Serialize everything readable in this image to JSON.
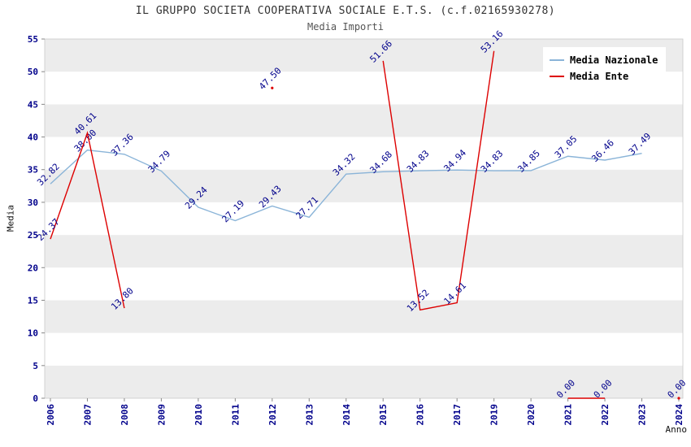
{
  "chart_data": {
    "type": "line",
    "title": "IL GRUPPO SOCIETA COOPERATIVA SOCIALE E.T.S. (c.f.02165930278)",
    "subtitle": "Media Importi",
    "xlabel": "Anno",
    "ylabel": "Media",
    "ylim": [
      0,
      55
    ],
    "ytick_step": 5,
    "grid": "horizontal-alternating-bands",
    "legend_position": "top-right",
    "axis_tick_color": "#00008B",
    "value_label_color": "#00008B",
    "band_color": "#ECECEC",
    "categories": [
      "2006",
      "2007",
      "2008",
      "2009",
      "2010",
      "2011",
      "2012",
      "2013",
      "2014",
      "2015",
      "2016",
      "2017",
      "2019",
      "2020",
      "2021",
      "2022",
      "2023",
      "2024"
    ],
    "series": [
      {
        "name": "Media Nazionale",
        "color": "#8AB4D8",
        "values": [
          32.82,
          38.0,
          37.36,
          34.79,
          29.24,
          27.19,
          29.43,
          27.71,
          34.32,
          34.68,
          34.83,
          34.94,
          34.83,
          34.85,
          37.05,
          36.46,
          37.49,
          null
        ]
      },
      {
        "name": "Media Ente",
        "color": "#DD0000",
        "values": [
          24.37,
          40.61,
          13.8,
          null,
          null,
          null,
          47.5,
          null,
          null,
          51.66,
          13.52,
          14.61,
          53.16,
          null,
          0.0,
          0.0,
          null,
          0.0
        ]
      }
    ]
  }
}
